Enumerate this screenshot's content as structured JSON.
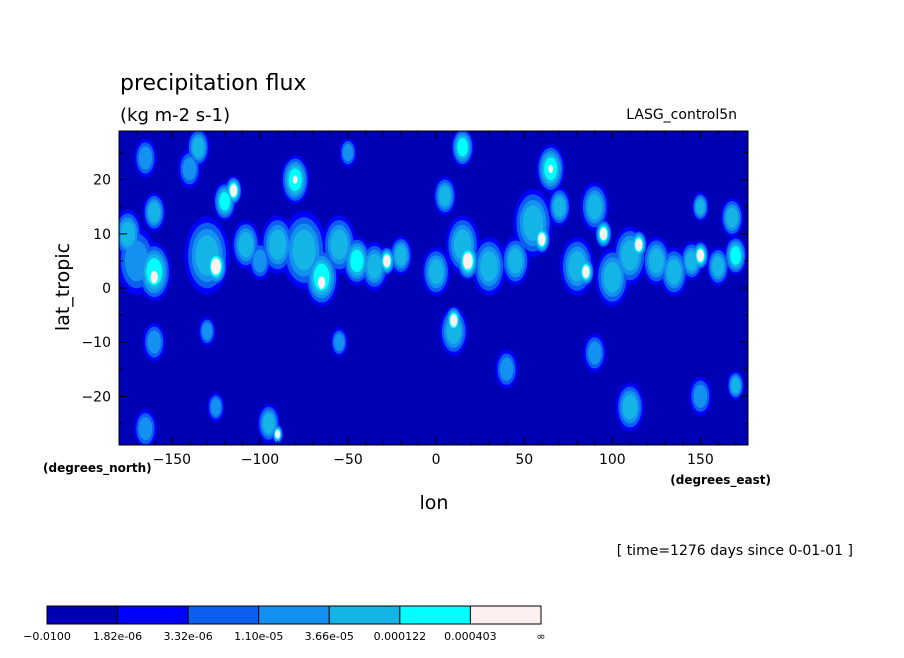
{
  "chart_data": {
    "type": "heatmap",
    "title": "precipitation flux",
    "subtitle": "(kg m-2 s-1)",
    "dataset_label": "LASG_control5n",
    "xlabel": "lon",
    "ylabel": "lat_tropic",
    "x_units": "(degrees_east)",
    "y_units": "(degrees_north)",
    "time_label": "[ time=1276 days since 0-01-01 ]",
    "xlim": [
      -180,
      177
    ],
    "ylim": [
      -29,
      29
    ],
    "x_ticks": [
      -150,
      -100,
      -50,
      0,
      50,
      100,
      150
    ],
    "y_ticks": [
      -20,
      -10,
      0,
      10,
      20
    ],
    "x_tick_labels": [
      "−150",
      "−100",
      "−50",
      "0",
      "50",
      "100",
      "150"
    ],
    "y_tick_labels": [
      "−20",
      "−10",
      "0",
      "10",
      "20"
    ],
    "colorbar": {
      "boundaries": [
        "−0.0100",
        "1.82e-06",
        "3.32e-06",
        "1.10e-05",
        "3.66e-05",
        "0.000122",
        "0.000403",
        "∞"
      ],
      "colors": [
        "#0000b4",
        "#0000ff",
        "#0a5ff0",
        "#1490f0",
        "#14b4e6",
        "#00ffff",
        "#fff0f0"
      ]
    },
    "background_color": "#0000b4",
    "field_levels_note": "",
    "blobs": [
      {
        "lon": -170,
        "lat": 5,
        "r": 7,
        "level": 3
      },
      {
        "lon": -160,
        "lat": 3,
        "r": 6,
        "level": 5
      },
      {
        "lon": -160,
        "lat": 2,
        "r": 3,
        "level": 6
      },
      {
        "lon": -175,
        "lat": 10,
        "r": 5,
        "level": 4
      },
      {
        "lon": -160,
        "lat": 14,
        "r": 4,
        "level": 4
      },
      {
        "lon": -165,
        "lat": 24,
        "r": 4,
        "level": 3
      },
      {
        "lon": -140,
        "lat": 22,
        "r": 4,
        "level": 3
      },
      {
        "lon": -135,
        "lat": 26,
        "r": 4,
        "level": 4
      },
      {
        "lon": -130,
        "lat": 6,
        "r": 8,
        "level": 4
      },
      {
        "lon": -125,
        "lat": 4,
        "r": 4,
        "level": 6
      },
      {
        "lon": -120,
        "lat": 16,
        "r": 4,
        "level": 5
      },
      {
        "lon": -115,
        "lat": 18,
        "r": 3,
        "level": 6
      },
      {
        "lon": -108,
        "lat": 8,
        "r": 5,
        "level": 4
      },
      {
        "lon": -100,
        "lat": 5,
        "r": 4,
        "level": 3
      },
      {
        "lon": -90,
        "lat": 8,
        "r": 6,
        "level": 4
      },
      {
        "lon": -80,
        "lat": 20,
        "r": 5,
        "level": 5
      },
      {
        "lon": -80,
        "lat": 20,
        "r": 2,
        "level": 6
      },
      {
        "lon": -75,
        "lat": 7,
        "r": 8,
        "level": 4
      },
      {
        "lon": -65,
        "lat": 2,
        "r": 6,
        "level": 5
      },
      {
        "lon": -65,
        "lat": 1,
        "r": 3,
        "level": 6
      },
      {
        "lon": -55,
        "lat": 8,
        "r": 6,
        "level": 4
      },
      {
        "lon": -45,
        "lat": 5,
        "r": 5,
        "level": 5
      },
      {
        "lon": -35,
        "lat": 4,
        "r": 5,
        "level": 4
      },
      {
        "lon": -28,
        "lat": 5,
        "r": 3,
        "level": 6
      },
      {
        "lon": -20,
        "lat": 6,
        "r": 4,
        "level": 4
      },
      {
        "lon": -55,
        "lat": -10,
        "r": 3,
        "level": 3
      },
      {
        "lon": -50,
        "lat": 25,
        "r": 3,
        "level": 3
      },
      {
        "lon": 0,
        "lat": 3,
        "r": 5,
        "level": 4
      },
      {
        "lon": 5,
        "lat": 17,
        "r": 4,
        "level": 4
      },
      {
        "lon": 15,
        "lat": 8,
        "r": 6,
        "level": 4
      },
      {
        "lon": 18,
        "lat": 5,
        "r": 4,
        "level": 6
      },
      {
        "lon": 15,
        "lat": 26,
        "r": 4,
        "level": 5
      },
      {
        "lon": 10,
        "lat": -6,
        "r": 3,
        "level": 6
      },
      {
        "lon": 10,
        "lat": -8,
        "r": 5,
        "level": 4
      },
      {
        "lon": 30,
        "lat": 4,
        "r": 6,
        "level": 4
      },
      {
        "lon": 45,
        "lat": 5,
        "r": 5,
        "level": 4
      },
      {
        "lon": 55,
        "lat": 12,
        "r": 7,
        "level": 4
      },
      {
        "lon": 60,
        "lat": 9,
        "r": 3,
        "level": 6
      },
      {
        "lon": 65,
        "lat": 22,
        "r": 5,
        "level": 5
      },
      {
        "lon": 65,
        "lat": 22,
        "r": 2,
        "level": 6
      },
      {
        "lon": 70,
        "lat": 15,
        "r": 4,
        "level": 4
      },
      {
        "lon": 80,
        "lat": 4,
        "r": 6,
        "level": 4
      },
      {
        "lon": 85,
        "lat": 3,
        "r": 3,
        "level": 6
      },
      {
        "lon": 90,
        "lat": 15,
        "r": 5,
        "level": 4
      },
      {
        "lon": 95,
        "lat": 10,
        "r": 3,
        "level": 6
      },
      {
        "lon": 100,
        "lat": 2,
        "r": 6,
        "level": 4
      },
      {
        "lon": 110,
        "lat": 6,
        "r": 6,
        "level": 4
      },
      {
        "lon": 115,
        "lat": 8,
        "r": 3,
        "level": 6
      },
      {
        "lon": 125,
        "lat": 5,
        "r": 5,
        "level": 4
      },
      {
        "lon": 135,
        "lat": 3,
        "r": 5,
        "level": 4
      },
      {
        "lon": 145,
        "lat": 5,
        "r": 4,
        "level": 4
      },
      {
        "lon": 150,
        "lat": 6,
        "r": 3,
        "level": 6
      },
      {
        "lon": 160,
        "lat": 4,
        "r": 4,
        "level": 4
      },
      {
        "lon": 170,
        "lat": 6,
        "r": 4,
        "level": 5
      },
      {
        "lon": 168,
        "lat": 13,
        "r": 4,
        "level": 4
      },
      {
        "lon": 150,
        "lat": 15,
        "r": 3,
        "level": 4
      },
      {
        "lon": -160,
        "lat": -10,
        "r": 4,
        "level": 3
      },
      {
        "lon": -130,
        "lat": -8,
        "r": 3,
        "level": 3
      },
      {
        "lon": -95,
        "lat": -25,
        "r": 4,
        "level": 4
      },
      {
        "lon": -90,
        "lat": -27,
        "r": 2,
        "level": 6
      },
      {
        "lon": -165,
        "lat": -26,
        "r": 4,
        "level": 3
      },
      {
        "lon": 40,
        "lat": -15,
        "r": 4,
        "level": 3
      },
      {
        "lon": 90,
        "lat": -12,
        "r": 4,
        "level": 3
      },
      {
        "lon": 110,
        "lat": -22,
        "r": 5,
        "level": 4
      },
      {
        "lon": 150,
        "lat": -20,
        "r": 4,
        "level": 3
      },
      {
        "lon": 170,
        "lat": -18,
        "r": 3,
        "level": 4
      },
      {
        "lon": -125,
        "lat": -22,
        "r": 3,
        "level": 3
      }
    ]
  }
}
